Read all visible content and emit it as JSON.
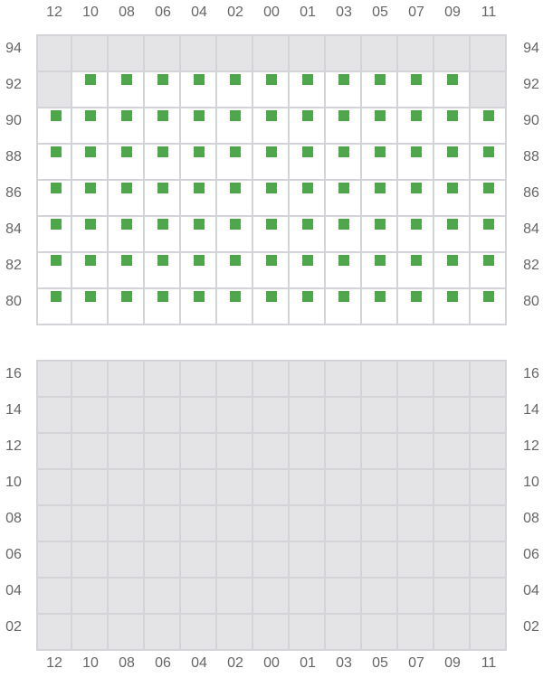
{
  "columns": [
    "12",
    "10",
    "08",
    "06",
    "04",
    "02",
    "00",
    "01",
    "03",
    "05",
    "07",
    "09",
    "11"
  ],
  "colors": {
    "available": "#4fa64b",
    "unavailable": "#e4e4e7",
    "grid": "#d4d4d8"
  },
  "upper_section": {
    "rows": [
      {
        "label": "94",
        "seats": [
          "unavailable",
          "unavailable",
          "unavailable",
          "unavailable",
          "unavailable",
          "unavailable",
          "unavailable",
          "unavailable",
          "unavailable",
          "unavailable",
          "unavailable",
          "unavailable",
          "unavailable"
        ]
      },
      {
        "label": "92",
        "seats": [
          "unavailable",
          "available",
          "available",
          "available",
          "available",
          "available",
          "available",
          "available",
          "available",
          "available",
          "available",
          "available",
          "unavailable"
        ]
      },
      {
        "label": "90",
        "seats": [
          "available",
          "available",
          "available",
          "available",
          "available",
          "available",
          "available",
          "available",
          "available",
          "available",
          "available",
          "available",
          "available"
        ]
      },
      {
        "label": "88",
        "seats": [
          "available",
          "available",
          "available",
          "available",
          "available",
          "available",
          "available",
          "available",
          "available",
          "available",
          "available",
          "available",
          "available"
        ]
      },
      {
        "label": "86",
        "seats": [
          "available",
          "available",
          "available",
          "available",
          "available",
          "available",
          "available",
          "available",
          "available",
          "available",
          "available",
          "available",
          "available"
        ]
      },
      {
        "label": "84",
        "seats": [
          "available",
          "available",
          "available",
          "available",
          "available",
          "available",
          "available",
          "available",
          "available",
          "available",
          "available",
          "available",
          "available"
        ]
      },
      {
        "label": "82",
        "seats": [
          "available",
          "available",
          "available",
          "available",
          "available",
          "available",
          "available",
          "available",
          "available",
          "available",
          "available",
          "available",
          "available"
        ]
      },
      {
        "label": "80",
        "seats": [
          "available",
          "available",
          "available",
          "available",
          "available",
          "available",
          "available",
          "available",
          "available",
          "available",
          "available",
          "available",
          "available"
        ]
      }
    ]
  },
  "lower_section": {
    "rows": [
      {
        "label": "16",
        "seats": [
          "unavailable",
          "unavailable",
          "unavailable",
          "unavailable",
          "unavailable",
          "unavailable",
          "unavailable",
          "unavailable",
          "unavailable",
          "unavailable",
          "unavailable",
          "unavailable",
          "unavailable"
        ]
      },
      {
        "label": "14",
        "seats": [
          "unavailable",
          "unavailable",
          "unavailable",
          "unavailable",
          "unavailable",
          "unavailable",
          "unavailable",
          "unavailable",
          "unavailable",
          "unavailable",
          "unavailable",
          "unavailable",
          "unavailable"
        ]
      },
      {
        "label": "12",
        "seats": [
          "unavailable",
          "unavailable",
          "unavailable",
          "unavailable",
          "unavailable",
          "unavailable",
          "unavailable",
          "unavailable",
          "unavailable",
          "unavailable",
          "unavailable",
          "unavailable",
          "unavailable"
        ]
      },
      {
        "label": "10",
        "seats": [
          "unavailable",
          "unavailable",
          "unavailable",
          "unavailable",
          "unavailable",
          "unavailable",
          "unavailable",
          "unavailable",
          "unavailable",
          "unavailable",
          "unavailable",
          "unavailable",
          "unavailable"
        ]
      },
      {
        "label": "08",
        "seats": [
          "unavailable",
          "unavailable",
          "unavailable",
          "unavailable",
          "unavailable",
          "unavailable",
          "unavailable",
          "unavailable",
          "unavailable",
          "unavailable",
          "unavailable",
          "unavailable",
          "unavailable"
        ]
      },
      {
        "label": "06",
        "seats": [
          "unavailable",
          "unavailable",
          "unavailable",
          "unavailable",
          "unavailable",
          "unavailable",
          "unavailable",
          "unavailable",
          "unavailable",
          "unavailable",
          "unavailable",
          "unavailable",
          "unavailable"
        ]
      },
      {
        "label": "04",
        "seats": [
          "unavailable",
          "unavailable",
          "unavailable",
          "unavailable",
          "unavailable",
          "unavailable",
          "unavailable",
          "unavailable",
          "unavailable",
          "unavailable",
          "unavailable",
          "unavailable",
          "unavailable"
        ]
      },
      {
        "label": "02",
        "seats": [
          "unavailable",
          "unavailable",
          "unavailable",
          "unavailable",
          "unavailable",
          "unavailable",
          "unavailable",
          "unavailable",
          "unavailable",
          "unavailable",
          "unavailable",
          "unavailable",
          "unavailable"
        ]
      }
    ]
  }
}
